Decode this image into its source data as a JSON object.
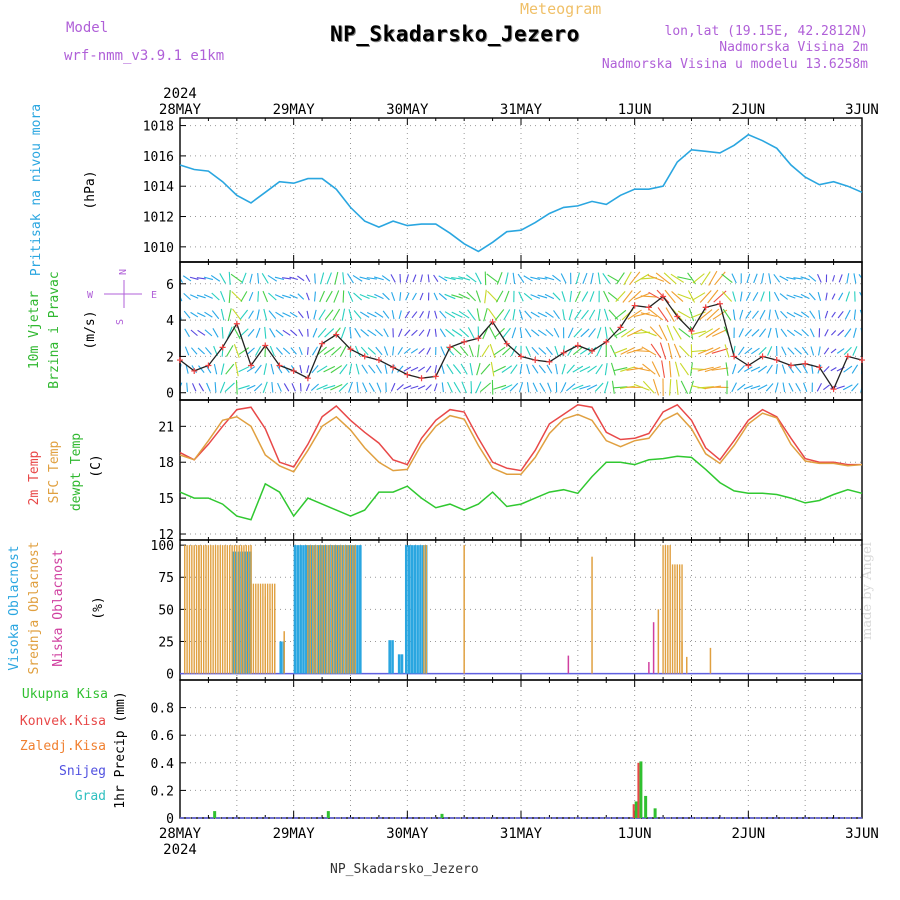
{
  "header": {
    "model_label": "Model",
    "model_name": "wrf-nmm_v3.9.1 e1km",
    "product": "Meteogram",
    "station": "NP_Skadarsko_Jezero",
    "lonlat": "lon,lat (19.15E, 42.2812N)",
    "elevation": "Nadmorska Visina 2m",
    "model_elevation": "Nadmorska Visina u modelu 13.6258m",
    "footer": "NP_Skadarsko_Jezero",
    "credit": "made by Angel"
  },
  "time_axis": {
    "year": "2024",
    "labels": [
      "28MAY",
      "29MAY",
      "30MAY",
      "31MAY",
      "1JUN",
      "2JUN",
      "3JUN"
    ]
  },
  "colors": {
    "pressure": "#2aa6e0",
    "temp2m": "#e84848",
    "sfc": "#e0a040",
    "dew": "#30c830",
    "high_cloud": "#2aa6e0",
    "mid_cloud": "#e0a040",
    "low_cloud": "#d040a0",
    "total": "#30c030",
    "conv": "#e84848",
    "frozen": "#f08030",
    "snow": "#5050e0",
    "hail": "#30c0c0",
    "purple": "#b060d8"
  },
  "chart_data": [
    {
      "type": "line",
      "panel": "pressure",
      "ylabel_left": "Pritisak na nivou mora",
      "unit": "(hPa)",
      "ylim": [
        1009,
        1018.5
      ],
      "yticks": [
        1010,
        1012,
        1014,
        1016,
        1018
      ],
      "x": [
        0,
        3,
        6,
        9,
        12,
        15,
        18,
        21,
        24,
        27,
        30,
        33,
        36,
        39,
        42,
        45,
        48,
        51,
        54,
        57,
        60,
        63,
        66,
        69,
        72,
        75,
        78,
        81,
        84,
        87,
        90,
        93,
        96,
        99,
        102,
        105,
        108,
        111,
        114,
        117,
        120,
        123,
        126,
        129,
        132,
        135,
        138,
        141,
        144
      ],
      "values": [
        1015.4,
        1015.1,
        1015.0,
        1014.3,
        1013.4,
        1012.9,
        1013.6,
        1014.3,
        1014.2,
        1014.5,
        1014.5,
        1013.8,
        1012.6,
        1011.7,
        1011.3,
        1011.7,
        1011.4,
        1011.5,
        1011.5,
        1010.9,
        1010.2,
        1009.7,
        1010.3,
        1011.0,
        1011.1,
        1011.6,
        1012.2,
        1012.6,
        1012.7,
        1013.0,
        1012.8,
        1013.4,
        1013.8,
        1013.8,
        1014.0,
        1015.6,
        1016.4,
        1016.3,
        1016.2,
        1016.7,
        1017.4,
        1017.0,
        1016.5,
        1015.4,
        1014.6,
        1014.1,
        1014.3,
        1014.0,
        1013.6
      ]
    },
    {
      "type": "line",
      "panel": "wind",
      "ylabel_left": "10m Vjetar",
      "ylabel_left2": "Brzina i Pravac",
      "unit": "(m/s)",
      "compass": {
        "n": "N",
        "w": "W",
        "e": "E",
        "s": "S"
      },
      "ylim": [
        -0.4,
        7.2
      ],
      "yticks": [
        0,
        2,
        4,
        6
      ],
      "x": [
        0,
        3,
        6,
        9,
        12,
        15,
        18,
        21,
        24,
        27,
        30,
        33,
        36,
        39,
        42,
        45,
        48,
        51,
        54,
        57,
        60,
        63,
        66,
        69,
        72,
        75,
        78,
        81,
        84,
        87,
        90,
        93,
        96,
        99,
        102,
        105,
        108,
        111,
        114,
        117,
        120,
        123,
        126,
        129,
        132,
        135,
        138,
        141,
        144
      ],
      "values": [
        1.8,
        1.2,
        1.5,
        2.5,
        3.8,
        1.5,
        2.6,
        1.5,
        1.2,
        0.8,
        2.7,
        3.2,
        2.4,
        2.0,
        1.8,
        1.4,
        1.0,
        0.8,
        0.9,
        2.5,
        2.8,
        3.0,
        3.9,
        2.7,
        2.0,
        1.8,
        1.7,
        2.2,
        2.6,
        2.3,
        2.8,
        3.6,
        4.8,
        4.7,
        5.3,
        4.2,
        3.4,
        4.7,
        4.9,
        2.0,
        1.5,
        2.0,
        1.8,
        1.5,
        1.6,
        1.4,
        0.2,
        2.0,
        1.8
      ]
    },
    {
      "type": "line",
      "panel": "temperature",
      "ylabel_left": "2m Temp",
      "ylabel_left2": "SFC Temp",
      "ylabel_left3": "dewpt Temp",
      "unit": "(C)",
      "ylim": [
        11.5,
        23.2
      ],
      "yticks": [
        12,
        15,
        18,
        21
      ],
      "x": [
        0,
        3,
        6,
        9,
        12,
        15,
        18,
        21,
        24,
        27,
        30,
        33,
        36,
        39,
        42,
        45,
        48,
        51,
        54,
        57,
        60,
        63,
        66,
        69,
        72,
        75,
        78,
        81,
        84,
        87,
        90,
        93,
        96,
        99,
        102,
        105,
        108,
        111,
        114,
        117,
        120,
        123,
        126,
        129,
        132,
        135,
        138,
        141,
        144
      ],
      "series": [
        {
          "name": "2m Temp",
          "values": [
            18.8,
            18.2,
            19.5,
            21.0,
            22.4,
            22.6,
            20.8,
            18.0,
            17.6,
            19.5,
            21.8,
            22.7,
            21.5,
            20.5,
            19.6,
            18.2,
            17.8,
            20.0,
            21.5,
            22.4,
            22.2,
            20.0,
            18.0,
            17.5,
            17.3,
            19.0,
            21.2,
            22.0,
            22.8,
            22.6,
            20.5,
            19.9,
            20.0,
            20.4,
            22.2,
            22.8,
            21.5,
            19.2,
            18.2,
            19.8,
            21.5,
            22.4,
            21.8,
            20.0,
            18.3,
            18.0,
            18.0,
            17.8,
            17.8
          ]
        },
        {
          "name": "SFC Temp",
          "values": [
            18.6,
            18.2,
            19.8,
            21.5,
            21.8,
            21.0,
            18.6,
            17.7,
            17.2,
            19.0,
            21.0,
            21.8,
            20.7,
            19.2,
            18.0,
            17.3,
            17.4,
            19.5,
            21.0,
            21.9,
            21.6,
            19.4,
            17.5,
            17.0,
            17.0,
            18.4,
            20.4,
            21.6,
            22.0,
            21.5,
            19.8,
            19.3,
            19.8,
            20.0,
            21.5,
            22.1,
            20.8,
            18.7,
            17.9,
            19.4,
            21.2,
            22.1,
            21.7,
            19.5,
            18.1,
            17.9,
            17.9,
            17.7,
            17.8
          ]
        },
        {
          "name": "dewpt Temp",
          "values": [
            15.5,
            15.0,
            15.0,
            14.5,
            13.5,
            13.2,
            16.2,
            15.5,
            13.5,
            15.0,
            14.5,
            14.0,
            13.5,
            14.0,
            15.5,
            15.5,
            16.0,
            15.0,
            14.2,
            14.5,
            14.0,
            14.5,
            15.5,
            14.3,
            14.5,
            15.0,
            15.5,
            15.7,
            15.4,
            16.8,
            18.0,
            18.0,
            17.8,
            18.2,
            18.3,
            18.5,
            18.4,
            17.4,
            16.3,
            15.6,
            15.4,
            15.4,
            15.3,
            15.0,
            14.6,
            14.8,
            15.3,
            15.7,
            15.4
          ]
        }
      ]
    },
    {
      "type": "bar",
      "panel": "cloud",
      "ylabel_left": "Visoka Oblacnost",
      "ylabel_left2": "Srednja Oblacnost",
      "ylabel_left3": "Niska Oblacnost",
      "unit": "(%)",
      "ylim": [
        -5,
        104
      ],
      "yticks": [
        0,
        25,
        50,
        75,
        100
      ],
      "series": [
        {
          "name": "Visoka Oblacnost",
          "blocks": [
            {
              "from": 11,
              "to": 15,
              "value": 95
            },
            {
              "from": 21,
              "to": 22,
              "value": 25
            },
            {
              "from": 24,
              "to": 38,
              "value": 100
            },
            {
              "from": 44,
              "to": 45,
              "value": 26
            },
            {
              "from": 46,
              "to": 47,
              "value": 15
            },
            {
              "from": 47.5,
              "to": 52,
              "value": 100
            }
          ]
        },
        {
          "name": "Srednja Oblacnost",
          "blocks": [
            {
              "from": 1,
              "to": 15,
              "value": 100
            },
            {
              "from": 15,
              "to": 20.5,
              "value": 70
            },
            {
              "from": 27,
              "to": 37.5,
              "value": 100
            },
            {
              "from": 51.5,
              "to": 52.5,
              "value": 100
            },
            {
              "from": 102,
              "to": 104,
              "value": 100
            },
            {
              "from": 104,
              "to": 106.5,
              "value": 85
            }
          ]
        },
        {
          "name": "Niska Oblacnost",
          "values": [
            {
              "x": 100,
              "value": 40
            },
            {
              "x": 82,
              "value": 14
            },
            {
              "x": 99,
              "value": 9
            }
          ]
        }
      ]
    },
    {
      "type": "bar",
      "panel": "precip",
      "ylabel_left": "Ukupna Kisa",
      "ylabel_left2": "Konvek.Kisa",
      "ylabel_left3": "Zaledj.Kisa",
      "ylabel_left4": "Snijeg",
      "ylabel_left5": "Grad",
      "unit": "1hr Precip (mm)",
      "ylim": [
        0,
        1.0
      ],
      "yticks": [
        0,
        0.2,
        0.4,
        0.6,
        0.8
      ],
      "series": [
        {
          "name": "Ukupna Kisa",
          "values": [
            {
              "x": 7,
              "value": 0.05
            },
            {
              "x": 31,
              "value": 0.05
            },
            {
              "x": 55,
              "value": 0.03
            },
            {
              "x": 96,
              "value": 0.12
            },
            {
              "x": 97,
              "value": 0.41
            },
            {
              "x": 98,
              "value": 0.16
            },
            {
              "x": 100,
              "value": 0.07
            }
          ]
        },
        {
          "name": "Konvek.Kisa",
          "values": [
            {
              "x": 96,
              "value": 0.1
            },
            {
              "x": 97,
              "value": 0.4
            }
          ]
        }
      ]
    }
  ]
}
